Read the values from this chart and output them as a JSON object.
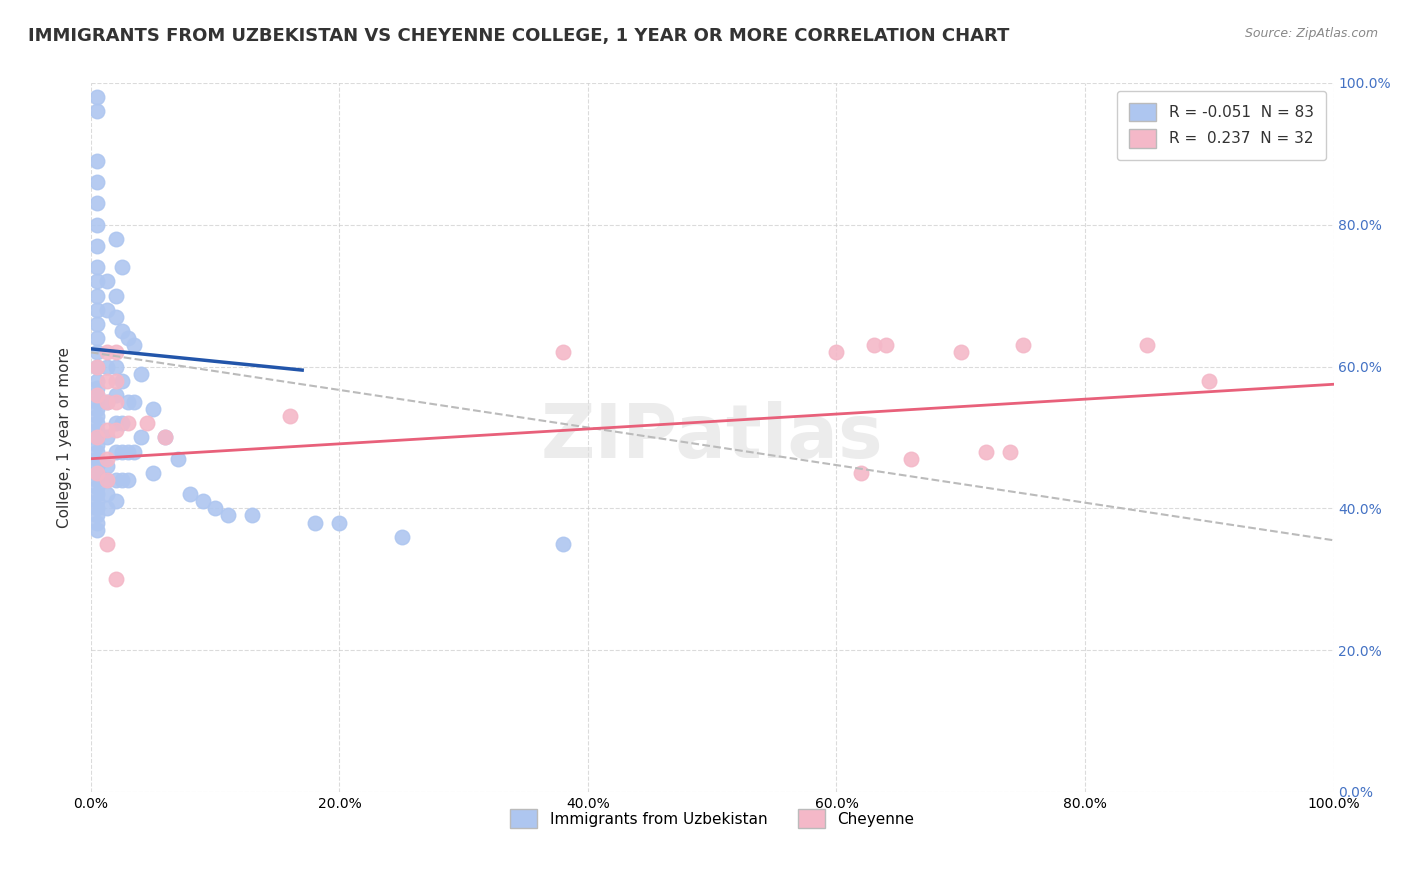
{
  "title": "IMMIGRANTS FROM UZBEKISTAN VS CHEYENNE COLLEGE, 1 YEAR OR MORE CORRELATION CHART",
  "source": "Source: ZipAtlas.com",
  "ylabel": "College, 1 year or more",
  "legend_entries": [
    {
      "label_r": "R = -0.051",
      "label_n": "N = 83",
      "color": "#aec6f0"
    },
    {
      "label_r": "R =  0.237",
      "label_n": "N = 32",
      "color": "#f4b8c8"
    }
  ],
  "bottom_legend": [
    "Immigrants from Uzbekistan",
    "Cheyenne"
  ],
  "watermark": "ZIPatlas",
  "blue_scatter_color": "#aec6f0",
  "pink_scatter_color": "#f4b8c8",
  "blue_line_color": "#2255aa",
  "pink_line_color": "#e8607a",
  "gray_dash_color": "#bbbbbb",
  "x_ticks": [
    0.0,
    0.2,
    0.4,
    0.6,
    0.8,
    1.0
  ],
  "x_tick_labels": [
    "0.0%",
    "20.0%",
    "40.0%",
    "60.0%",
    "80.0%",
    "100.0%"
  ],
  "y_ticks": [
    0.0,
    0.2,
    0.4,
    0.6,
    0.8,
    1.0
  ],
  "y_tick_labels_right": [
    "0.0%",
    "20.0%",
    "40.0%",
    "60.0%",
    "80.0%",
    "100.0%"
  ],
  "blue_points": [
    [
      0.005,
      0.98
    ],
    [
      0.005,
      0.96
    ],
    [
      0.005,
      0.89
    ],
    [
      0.005,
      0.86
    ],
    [
      0.005,
      0.83
    ],
    [
      0.005,
      0.8
    ],
    [
      0.005,
      0.77
    ],
    [
      0.005,
      0.74
    ],
    [
      0.005,
      0.72
    ],
    [
      0.005,
      0.7
    ],
    [
      0.005,
      0.68
    ],
    [
      0.005,
      0.66
    ],
    [
      0.005,
      0.64
    ],
    [
      0.005,
      0.62
    ],
    [
      0.005,
      0.6
    ],
    [
      0.005,
      0.58
    ],
    [
      0.005,
      0.57
    ],
    [
      0.005,
      0.56
    ],
    [
      0.005,
      0.55
    ],
    [
      0.005,
      0.54
    ],
    [
      0.005,
      0.53
    ],
    [
      0.005,
      0.52
    ],
    [
      0.005,
      0.51
    ],
    [
      0.005,
      0.5
    ],
    [
      0.005,
      0.49
    ],
    [
      0.005,
      0.48
    ],
    [
      0.005,
      0.47
    ],
    [
      0.005,
      0.46
    ],
    [
      0.005,
      0.45
    ],
    [
      0.005,
      0.44
    ],
    [
      0.005,
      0.43
    ],
    [
      0.005,
      0.42
    ],
    [
      0.005,
      0.41
    ],
    [
      0.005,
      0.4
    ],
    [
      0.005,
      0.39
    ],
    [
      0.005,
      0.38
    ],
    [
      0.005,
      0.37
    ],
    [
      0.013,
      0.72
    ],
    [
      0.013,
      0.68
    ],
    [
      0.013,
      0.6
    ],
    [
      0.013,
      0.55
    ],
    [
      0.013,
      0.5
    ],
    [
      0.013,
      0.46
    ],
    [
      0.013,
      0.44
    ],
    [
      0.013,
      0.42
    ],
    [
      0.013,
      0.4
    ],
    [
      0.02,
      0.78
    ],
    [
      0.02,
      0.7
    ],
    [
      0.02,
      0.67
    ],
    [
      0.02,
      0.6
    ],
    [
      0.02,
      0.56
    ],
    [
      0.02,
      0.52
    ],
    [
      0.02,
      0.48
    ],
    [
      0.02,
      0.44
    ],
    [
      0.02,
      0.41
    ],
    [
      0.025,
      0.74
    ],
    [
      0.025,
      0.65
    ],
    [
      0.025,
      0.58
    ],
    [
      0.025,
      0.52
    ],
    [
      0.025,
      0.48
    ],
    [
      0.025,
      0.44
    ],
    [
      0.03,
      0.64
    ],
    [
      0.03,
      0.55
    ],
    [
      0.03,
      0.48
    ],
    [
      0.03,
      0.44
    ],
    [
      0.035,
      0.63
    ],
    [
      0.035,
      0.55
    ],
    [
      0.035,
      0.48
    ],
    [
      0.04,
      0.59
    ],
    [
      0.04,
      0.5
    ],
    [
      0.05,
      0.54
    ],
    [
      0.05,
      0.45
    ],
    [
      0.06,
      0.5
    ],
    [
      0.07,
      0.47
    ],
    [
      0.08,
      0.42
    ],
    [
      0.09,
      0.41
    ],
    [
      0.1,
      0.4
    ],
    [
      0.11,
      0.39
    ],
    [
      0.13,
      0.39
    ],
    [
      0.18,
      0.38
    ],
    [
      0.2,
      0.38
    ],
    [
      0.25,
      0.36
    ],
    [
      0.38,
      0.35
    ]
  ],
  "pink_points": [
    [
      0.005,
      0.6
    ],
    [
      0.005,
      0.56
    ],
    [
      0.005,
      0.5
    ],
    [
      0.005,
      0.45
    ],
    [
      0.013,
      0.62
    ],
    [
      0.013,
      0.58
    ],
    [
      0.013,
      0.55
    ],
    [
      0.013,
      0.51
    ],
    [
      0.013,
      0.47
    ],
    [
      0.013,
      0.44
    ],
    [
      0.013,
      0.35
    ],
    [
      0.02,
      0.62
    ],
    [
      0.02,
      0.58
    ],
    [
      0.02,
      0.55
    ],
    [
      0.02,
      0.51
    ],
    [
      0.02,
      0.3
    ],
    [
      0.03,
      0.52
    ],
    [
      0.045,
      0.52
    ],
    [
      0.06,
      0.5
    ],
    [
      0.16,
      0.53
    ],
    [
      0.38,
      0.62
    ],
    [
      0.6,
      0.62
    ],
    [
      0.62,
      0.45
    ],
    [
      0.63,
      0.63
    ],
    [
      0.64,
      0.63
    ],
    [
      0.66,
      0.47
    ],
    [
      0.7,
      0.62
    ],
    [
      0.72,
      0.48
    ],
    [
      0.74,
      0.48
    ],
    [
      0.75,
      0.63
    ],
    [
      0.85,
      0.63
    ],
    [
      0.9,
      0.58
    ]
  ],
  "blue_solid_line": [
    [
      0.0,
      0.625
    ],
    [
      0.17,
      0.595
    ]
  ],
  "gray_dash_line": [
    [
      0.0,
      0.62
    ],
    [
      1.0,
      0.355
    ]
  ],
  "pink_line": [
    [
      0.0,
      0.47
    ],
    [
      1.0,
      0.575
    ]
  ],
  "background_color": "#ffffff",
  "grid_color": "#cccccc",
  "title_fontsize": 13,
  "axis_label_fontsize": 11
}
